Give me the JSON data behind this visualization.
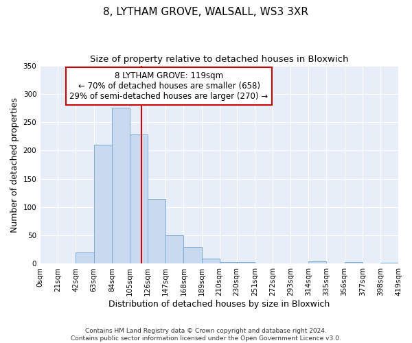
{
  "title": "8, LYTHAM GROVE, WALSALL, WS3 3XR",
  "subtitle": "Size of property relative to detached houses in Bloxwich",
  "xlabel": "Distribution of detached houses by size in Bloxwich",
  "ylabel": "Number of detached properties",
  "bin_edges": [
    0,
    21,
    42,
    63,
    84,
    105,
    126,
    147,
    168,
    189,
    210,
    230,
    251,
    272,
    293,
    314,
    335,
    356,
    377,
    398,
    419
  ],
  "bin_counts": [
    0,
    0,
    20,
    210,
    275,
    228,
    114,
    50,
    30,
    9,
    3,
    3,
    0,
    0,
    0,
    4,
    0,
    3,
    0,
    2
  ],
  "bar_facecolor": "#c8d9f0",
  "bar_edgecolor": "#7aaad4",
  "vline_x": 119,
  "vline_color": "#cc0000",
  "annotation_text": "8 LYTHAM GROVE: 119sqm\n← 70% of detached houses are smaller (658)\n29% of semi-detached houses are larger (270) →",
  "annotation_box_edgecolor": "#cc0000",
  "annotation_box_facecolor": "#ffffff",
  "ylim": [
    0,
    350
  ],
  "tick_labels": [
    "0sqm",
    "21sqm",
    "42sqm",
    "63sqm",
    "84sqm",
    "105sqm",
    "126sqm",
    "147sqm",
    "168sqm",
    "189sqm",
    "210sqm",
    "230sqm",
    "251sqm",
    "272sqm",
    "293sqm",
    "314sqm",
    "335sqm",
    "356sqm",
    "377sqm",
    "398sqm",
    "419sqm"
  ],
  "footer_text": "Contains HM Land Registry data © Crown copyright and database right 2024.\nContains public sector information licensed under the Open Government Licence v3.0.",
  "fig_facecolor": "#ffffff",
  "plot_facecolor": "#e8eef8",
  "title_fontsize": 11,
  "subtitle_fontsize": 9.5,
  "axis_label_fontsize": 9,
  "tick_fontsize": 7.5,
  "annotation_fontsize": 8.5,
  "footer_fontsize": 6.5
}
